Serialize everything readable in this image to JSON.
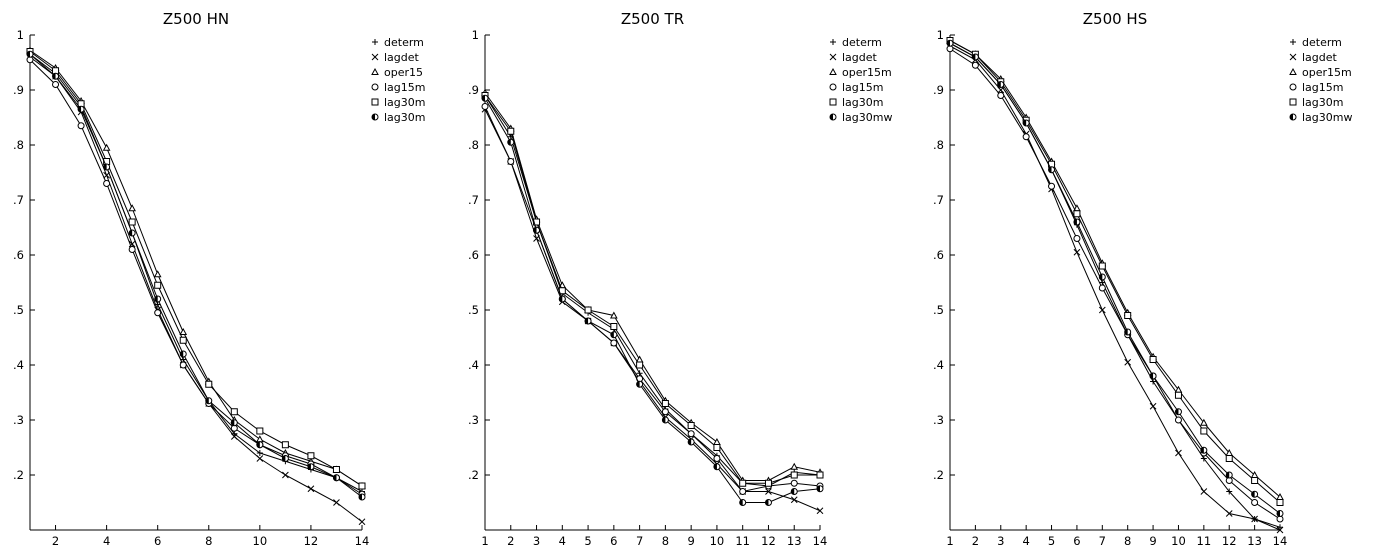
{
  "chart_data": [
    {
      "type": "line",
      "title": "Z500  HN",
      "xlabel": "",
      "ylabel": "",
      "xlim": [
        1,
        14
      ],
      "ylim": [
        0.1,
        1.0
      ],
      "xticks": [
        2,
        4,
        6,
        8,
        10,
        12,
        14
      ],
      "yticks": [
        0.2,
        0.3,
        0.4,
        0.5,
        0.6,
        0.7,
        0.8,
        0.9,
        1
      ],
      "ytick_labels": [
        ".2",
        ".3",
        ".4",
        ".5",
        ".6",
        ".7",
        ".8",
        ".9",
        "1"
      ],
      "legend_position": "right",
      "x": [
        1,
        2,
        3,
        4,
        5,
        6,
        7,
        8,
        9,
        10,
        11,
        12,
        13,
        14
      ],
      "series": [
        {
          "name": "determ",
          "marker": "plus",
          "values": [
            0.965,
            0.93,
            0.87,
            0.76,
            0.64,
            0.51,
            0.41,
            0.335,
            0.275,
            0.24,
            0.225,
            0.21,
            0.195,
            0.17
          ]
        },
        {
          "name": "lagdet",
          "marker": "cross",
          "values": [
            0.96,
            0.925,
            0.86,
            0.745,
            0.62,
            0.5,
            0.4,
            0.33,
            0.27,
            0.23,
            0.2,
            0.175,
            0.15,
            0.115
          ]
        },
        {
          "name": "oper15",
          "marker": "triangle",
          "values": [
            0.972,
            0.94,
            0.88,
            0.795,
            0.685,
            0.565,
            0.46,
            0.37,
            0.3,
            0.265,
            0.24,
            0.225,
            0.21,
            0.18
          ]
        },
        {
          "name": "lag15m",
          "marker": "circle",
          "values": [
            0.955,
            0.91,
            0.835,
            0.73,
            0.61,
            0.495,
            0.4,
            0.33,
            0.285,
            0.255,
            0.235,
            0.22,
            0.195,
            0.165
          ]
        },
        {
          "name": "lag30m",
          "marker": "square",
          "values": [
            0.97,
            0.935,
            0.875,
            0.77,
            0.66,
            0.545,
            0.445,
            0.365,
            0.315,
            0.28,
            0.255,
            0.235,
            0.21,
            0.18
          ]
        },
        {
          "name": "lag30m",
          "marker": "halfcircle",
          "values": [
            0.965,
            0.925,
            0.865,
            0.76,
            0.64,
            0.52,
            0.42,
            0.335,
            0.295,
            0.255,
            0.23,
            0.215,
            0.195,
            0.16
          ]
        }
      ]
    },
    {
      "type": "line",
      "title": "Z500  TR",
      "xlabel": "",
      "ylabel": "",
      "xlim": [
        1,
        14
      ],
      "ylim": [
        0.1,
        1.0
      ],
      "xticks": [
        1,
        2,
        3,
        4,
        5,
        6,
        7,
        8,
        9,
        10,
        11,
        12,
        13,
        14
      ],
      "yticks": [
        0.2,
        0.3,
        0.4,
        0.5,
        0.6,
        0.7,
        0.8,
        0.9,
        1
      ],
      "ytick_labels": [
        ".2",
        ".3",
        ".4",
        ".5",
        ".6",
        ".7",
        ".8",
        ".9",
        "1"
      ],
      "legend_position": "right",
      "x": [
        1,
        2,
        3,
        4,
        5,
        6,
        7,
        8,
        9,
        10,
        11,
        12,
        13,
        14
      ],
      "series": [
        {
          "name": "determ",
          "marker": "plus",
          "values": [
            0.89,
            0.815,
            0.66,
            0.53,
            0.495,
            0.465,
            0.385,
            0.32,
            0.275,
            0.235,
            0.185,
            0.18,
            0.205,
            0.2
          ]
        },
        {
          "name": "lagdet",
          "marker": "cross",
          "values": [
            0.865,
            0.77,
            0.63,
            0.515,
            0.48,
            0.44,
            0.37,
            0.305,
            0.265,
            0.22,
            0.17,
            0.17,
            0.155,
            0.135
          ]
        },
        {
          "name": "oper15m",
          "marker": "triangle",
          "values": [
            0.895,
            0.83,
            0.665,
            0.545,
            0.5,
            0.49,
            0.41,
            0.335,
            0.295,
            0.26,
            0.19,
            0.19,
            0.215,
            0.205
          ]
        },
        {
          "name": "lag15m",
          "marker": "circle",
          "values": [
            0.87,
            0.77,
            0.645,
            0.52,
            0.48,
            0.44,
            0.375,
            0.315,
            0.275,
            0.23,
            0.17,
            0.18,
            0.185,
            0.18
          ]
        },
        {
          "name": "lag30m",
          "marker": "square",
          "values": [
            0.89,
            0.825,
            0.66,
            0.535,
            0.5,
            0.47,
            0.4,
            0.33,
            0.29,
            0.25,
            0.185,
            0.185,
            0.2,
            0.2
          ]
        },
        {
          "name": "lag30mw",
          "marker": "halfcircle",
          "values": [
            0.885,
            0.805,
            0.645,
            0.52,
            0.48,
            0.455,
            0.365,
            0.3,
            0.26,
            0.215,
            0.15,
            0.15,
            0.17,
            0.175
          ]
        }
      ]
    },
    {
      "type": "line",
      "title": "Z500  HS",
      "xlabel": "",
      "ylabel": "",
      "xlim": [
        1,
        14
      ],
      "ylim": [
        0.1,
        1.0
      ],
      "xticks": [
        1,
        2,
        3,
        4,
        5,
        6,
        7,
        8,
        9,
        10,
        11,
        12,
        13,
        14
      ],
      "yticks": [
        0.2,
        0.3,
        0.4,
        0.5,
        0.6,
        0.7,
        0.8,
        0.9,
        1
      ],
      "ytick_labels": [
        ".2",
        ".3",
        ".4",
        ".5",
        ".6",
        ".7",
        ".8",
        ".9",
        "1"
      ],
      "legend_position": "right",
      "x": [
        1,
        2,
        3,
        4,
        5,
        6,
        7,
        8,
        9,
        10,
        11,
        12,
        13,
        14
      ],
      "series": [
        {
          "name": "determ",
          "marker": "plus",
          "values": [
            0.985,
            0.96,
            0.91,
            0.84,
            0.755,
            0.655,
            0.55,
            0.455,
            0.37,
            0.3,
            0.23,
            0.17,
            0.12,
            0.105
          ]
        },
        {
          "name": "lagdet",
          "marker": "cross",
          "values": [
            0.98,
            0.955,
            0.9,
            0.82,
            0.72,
            0.605,
            0.5,
            0.405,
            0.325,
            0.24,
            0.17,
            0.13,
            0.12,
            0.1
          ]
        },
        {
          "name": "oper15m",
          "marker": "triangle",
          "values": [
            0.99,
            0.965,
            0.92,
            0.85,
            0.77,
            0.685,
            0.585,
            0.495,
            0.415,
            0.355,
            0.295,
            0.24,
            0.2,
            0.16
          ]
        },
        {
          "name": "lag15m",
          "marker": "circle",
          "values": [
            0.975,
            0.945,
            0.89,
            0.815,
            0.725,
            0.63,
            0.54,
            0.455,
            0.38,
            0.3,
            0.24,
            0.19,
            0.15,
            0.12
          ]
        },
        {
          "name": "lag30m",
          "marker": "square",
          "values": [
            0.99,
            0.965,
            0.915,
            0.845,
            0.765,
            0.675,
            0.58,
            0.49,
            0.41,
            0.345,
            0.28,
            0.23,
            0.19,
            0.15
          ]
        },
        {
          "name": "lag30mw",
          "marker": "halfcircle",
          "values": [
            0.985,
            0.96,
            0.91,
            0.84,
            0.755,
            0.66,
            0.56,
            0.46,
            0.38,
            0.315,
            0.245,
            0.2,
            0.165,
            0.13
          ]
        }
      ]
    }
  ]
}
